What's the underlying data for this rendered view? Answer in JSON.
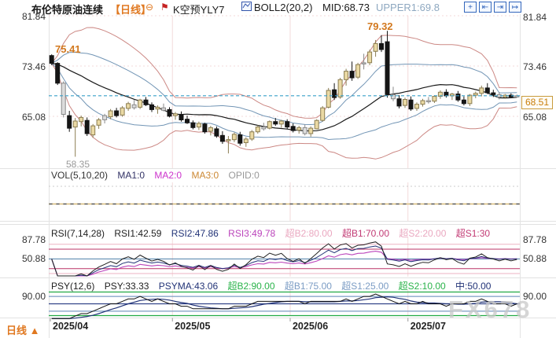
{
  "header": {
    "symbol": "布伦特原油连续",
    "period": "【日线】",
    "collapse_icon": "⊖",
    "pin_icon": "⚑",
    "kline_label": "K空预YLY7",
    "boll_label": "BOLL2(20,2)",
    "boll_mid": "MID:68.73",
    "boll_upper": "UPPER1:69.8",
    "toolbar_icons": [
      {
        "name": "crosshair",
        "glyph": "+"
      },
      {
        "name": "scale-left",
        "glyph": "⇤"
      },
      {
        "name": "scale-right",
        "glyph": "⇥"
      },
      {
        "name": "pan-right",
        "glyph": "↦"
      }
    ]
  },
  "axes": {
    "main_left": [
      "81.84",
      "73.46",
      "65.08"
    ],
    "main_right": [
      "81.84",
      "73.46",
      "65.08"
    ],
    "last_price": "68.51",
    "rsi_labels": [
      "87.78",
      "50.88"
    ],
    "psy_label": "90.00",
    "dates": [
      "2025/04",
      "2025/05",
      "2025/06",
      "2025/07"
    ]
  },
  "annotations": {
    "april_high": "75.41",
    "june_high": "79.32",
    "april_low": "58.35"
  },
  "legends": {
    "vol": [
      {
        "text": "VOL(5,10,20)",
        "color": "#333333"
      },
      {
        "text": "MA1:0",
        "color": "#333366"
      },
      {
        "text": "MA2:0",
        "color": "#cc33cc"
      },
      {
        "text": "MA3:0",
        "color": "#cc8833"
      },
      {
        "text": "OPID:0",
        "color": "#999999"
      }
    ],
    "rsi": [
      {
        "text": "RSI(7,14,28)",
        "color": "#222222"
      },
      {
        "text": "RSI1:42.59",
        "color": "#222222"
      },
      {
        "text": "RSI2:47.86",
        "color": "#223377"
      },
      {
        "text": "RSI3:49.78",
        "color": "#bb44bb"
      },
      {
        "text": "超B2:80.00",
        "color": "#eaa8c0"
      },
      {
        "text": "超B1:70.00",
        "color": "#c23a74"
      },
      {
        "text": "超S2:20.00",
        "color": "#eaa8c0"
      },
      {
        "text": "超S1:30",
        "color": "#c23a74"
      }
    ],
    "psy": [
      {
        "text": "PSY(12,6)",
        "color": "#222222"
      },
      {
        "text": "PSY:33.33",
        "color": "#222222"
      },
      {
        "text": "PSYMA:43.06",
        "color": "#223377"
      },
      {
        "text": "超B2:90.00",
        "color": "#2ab34a"
      },
      {
        "text": "超B1:75.00",
        "color": "#7b9cc4"
      },
      {
        "text": "超S1:25.00",
        "color": "#7b9cc4"
      },
      {
        "text": "超S2:10.00",
        "color": "#2ab34a"
      },
      {
        "text": "中:50.00",
        "color": "#223377"
      }
    ]
  },
  "footer": {
    "period_label": "日线",
    "arrow": "▲"
  },
  "watermark": "FX678",
  "colors": {
    "up_candle": "#ead9a4",
    "up_border": "#8b7d52",
    "down_candle": "#151515",
    "neutral_candle": "#dcdcdc",
    "neutral_border": "#888888",
    "boll_outer": "#cc8884",
    "boll_inner": "#7295b5",
    "boll_mid": "#1a1a1a",
    "price_line": "#3aa0c8",
    "grid_pink": "#f3dada",
    "vol_zero_dark": "#555555",
    "vol_zero_tan": "#d8bc7a",
    "vol_grid": "#cccccc",
    "rsi1": "#222222",
    "rsi2": "#223377",
    "rsi3": "#bb44bb",
    "rsi_level_light": "#eeb3c3",
    "rsi_level_dark": "#bb3366",
    "rsi_level_mid": "#4d7fa8",
    "psy_line": "#111111",
    "psyma": "#223377",
    "psy_green": "#22aa44",
    "psy_blue": "#7b9cc4",
    "psy_mid": "#334488",
    "tick_gray": "#999999"
  },
  "chart_data": {
    "type": "candlestick",
    "title": "布伦特原油连续",
    "interval": "日线",
    "ylim": [
      56.5,
      81.84
    ],
    "y_ticks": [
      81.84,
      73.46,
      65.08
    ],
    "last_close": 68.51,
    "extremes": {
      "high_apr": 75.41,
      "high_jun": 79.32,
      "low_apr": 58.35
    },
    "months": [
      {
        "label": "2025/04",
        "start": 0
      },
      {
        "label": "2025/05",
        "start": 21
      },
      {
        "label": "2025/06",
        "start": 41
      },
      {
        "label": "2025/07",
        "start": 61
      }
    ],
    "indicators": {
      "boll": {
        "period": 20,
        "dev": 2,
        "mid": 68.73,
        "upper1": 69.8
      },
      "vol": {
        "periods": [
          5,
          10,
          20
        ],
        "ma1": 0,
        "ma2": 0,
        "ma3": 0,
        "opid": 0
      },
      "rsi": {
        "periods": [
          7,
          14,
          28
        ],
        "values": [
          42.59,
          47.86,
          49.78
        ],
        "levels": [
          80,
          70,
          50,
          30,
          20
        ]
      },
      "psy": {
        "period": 12,
        "ma": 6,
        "psy": 33.33,
        "psyma": 43.06,
        "levels": [
          90,
          75,
          50,
          25,
          10
        ]
      }
    },
    "candles": [
      [
        75.2,
        75.41,
        73.6,
        73.9,
        "d"
      ],
      [
        73.9,
        74.1,
        70.3,
        70.6,
        "d"
      ],
      [
        70.6,
        70.9,
        64.9,
        65.4,
        "g"
      ],
      [
        65.2,
        66.0,
        62.5,
        63.1,
        "d"
      ],
      [
        63.3,
        64.8,
        58.35,
        64.3,
        "u"
      ],
      [
        64.2,
        65.2,
        63.4,
        64.9,
        "u"
      ],
      [
        64.4,
        64.9,
        61.8,
        62.2,
        "d"
      ],
      [
        62.0,
        63.8,
        61.5,
        63.5,
        "u"
      ],
      [
        63.6,
        64.8,
        63.0,
        64.5,
        "u"
      ],
      [
        64.5,
        65.5,
        63.9,
        65.2,
        "g"
      ],
      [
        65.0,
        66.3,
        64.6,
        66.0,
        "u"
      ],
      [
        66.0,
        66.5,
        64.9,
        65.2,
        "d"
      ],
      [
        65.3,
        66.8,
        65.0,
        66.5,
        "u"
      ],
      [
        66.4,
        67.5,
        66.0,
        67.2,
        "u"
      ],
      [
        67.0,
        67.8,
        66.2,
        66.5,
        "g"
      ],
      [
        66.6,
        68.0,
        66.3,
        67.8,
        "u"
      ],
      [
        67.8,
        68.3,
        66.8,
        67.0,
        "d"
      ],
      [
        67.0,
        67.4,
        65.8,
        66.2,
        "d"
      ],
      [
        66.3,
        66.9,
        65.5,
        66.6,
        "u"
      ],
      [
        66.5,
        67.2,
        65.9,
        66.1,
        "g"
      ],
      [
        66.2,
        66.6,
        64.9,
        65.1,
        "d"
      ],
      [
        65.2,
        65.8,
        64.5,
        65.5,
        "u"
      ],
      [
        65.4,
        65.9,
        64.2,
        64.5,
        "d"
      ],
      [
        64.6,
        65.2,
        63.8,
        64.0,
        "d"
      ],
      [
        64.0,
        64.4,
        62.9,
        63.2,
        "d"
      ],
      [
        63.3,
        64.2,
        62.8,
        63.9,
        "u"
      ],
      [
        63.8,
        64.0,
        62.2,
        62.5,
        "d"
      ],
      [
        62.6,
        63.5,
        61.9,
        63.2,
        "u"
      ],
      [
        63.0,
        63.4,
        61.5,
        61.8,
        "d"
      ],
      [
        61.9,
        62.6,
        60.5,
        60.9,
        "d"
      ],
      [
        61.0,
        61.8,
        58.9,
        61.2,
        "u"
      ],
      [
        61.2,
        62.4,
        60.8,
        62.1,
        "u"
      ],
      [
        62.0,
        62.5,
        60.2,
        60.6,
        "d"
      ],
      [
        60.7,
        61.6,
        60.0,
        61.3,
        "u"
      ],
      [
        61.3,
        62.8,
        61.0,
        62.5,
        "u"
      ],
      [
        62.5,
        63.6,
        62.2,
        63.3,
        "u"
      ],
      [
        63.3,
        64.0,
        62.7,
        63.0,
        "g"
      ],
      [
        63.1,
        64.4,
        62.9,
        64.2,
        "u"
      ],
      [
        64.2,
        64.8,
        63.5,
        63.8,
        "d"
      ],
      [
        63.8,
        64.5,
        63.2,
        64.3,
        "u"
      ],
      [
        64.2,
        64.6,
        63.0,
        63.3,
        "d"
      ],
      [
        63.4,
        63.9,
        62.4,
        62.7,
        "d"
      ],
      [
        62.8,
        63.5,
        62.2,
        63.2,
        "u"
      ],
      [
        63.2,
        63.7,
        61.9,
        62.2,
        "g"
      ],
      [
        62.2,
        63.4,
        61.7,
        63.1,
        "u"
      ],
      [
        63.0,
        64.6,
        62.9,
        64.4,
        "u"
      ],
      [
        64.4,
        66.8,
        64.2,
        66.5,
        "u"
      ],
      [
        66.6,
        69.8,
        66.4,
        69.4,
        "u"
      ],
      [
        69.5,
        70.6,
        67.8,
        68.2,
        "d"
      ],
      [
        68.3,
        71.5,
        68.0,
        71.2,
        "u"
      ],
      [
        71.2,
        73.0,
        70.2,
        72.6,
        "u"
      ],
      [
        72.6,
        74.2,
        71.0,
        71.5,
        "d"
      ],
      [
        71.6,
        74.0,
        71.3,
        73.7,
        "u"
      ],
      [
        73.8,
        75.5,
        72.9,
        74.0,
        "g"
      ],
      [
        74.0,
        76.2,
        73.6,
        75.8,
        "u"
      ],
      [
        75.9,
        77.8,
        75.0,
        77.2,
        "u"
      ],
      [
        77.2,
        78.6,
        75.8,
        76.2,
        "d"
      ],
      [
        77.5,
        79.32,
        68.2,
        68.7,
        "d"
      ],
      [
        68.7,
        70.0,
        67.6,
        68.0,
        "g"
      ],
      [
        68.0,
        68.6,
        66.4,
        66.8,
        "d"
      ],
      [
        66.9,
        68.2,
        66.5,
        67.9,
        "u"
      ],
      [
        67.8,
        68.4,
        66.0,
        66.3,
        "d"
      ],
      [
        66.4,
        67.4,
        66.0,
        67.1,
        "u"
      ],
      [
        67.1,
        68.0,
        66.7,
        67.7,
        "u"
      ],
      [
        67.7,
        68.3,
        67.2,
        67.5,
        "g"
      ],
      [
        67.6,
        68.6,
        67.3,
        68.4,
        "u"
      ],
      [
        68.4,
        69.4,
        68.0,
        69.1,
        "u"
      ],
      [
        69.1,
        69.6,
        68.2,
        68.5,
        "d"
      ],
      [
        68.5,
        69.0,
        67.8,
        68.8,
        "u"
      ],
      [
        68.8,
        69.3,
        67.5,
        67.8,
        "d"
      ],
      [
        67.8,
        68.4,
        66.9,
        67.2,
        "d"
      ],
      [
        67.2,
        68.8,
        66.8,
        68.6,
        "u"
      ],
      [
        68.6,
        69.2,
        68.1,
        68.9,
        "u"
      ],
      [
        68.9,
        70.2,
        68.4,
        69.8,
        "u"
      ],
      [
        69.8,
        70.6,
        68.8,
        69.0,
        "d"
      ],
      [
        69.0,
        69.5,
        68.3,
        68.7,
        "d"
      ],
      [
        68.7,
        69.1,
        67.9,
        68.3,
        "g"
      ],
      [
        68.3,
        68.8,
        68.0,
        68.6,
        "u"
      ],
      [
        68.6,
        68.9,
        68.1,
        68.3,
        "d"
      ],
      [
        68.3,
        68.7,
        68.2,
        68.51,
        "g"
      ]
    ]
  }
}
